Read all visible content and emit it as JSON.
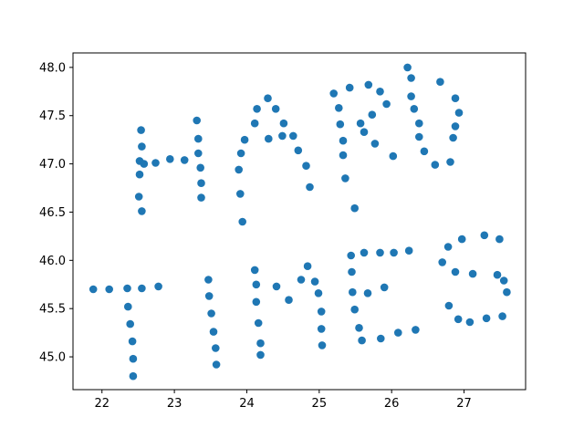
{
  "chart_data": {
    "type": "scatter",
    "title": "",
    "xlabel": "",
    "ylabel": "",
    "xlim": [
      21.6,
      27.85
    ],
    "ylim": [
      44.66,
      48.15
    ],
    "xticks": [
      22,
      23,
      24,
      25,
      26,
      27
    ],
    "yticks": [
      45.0,
      45.5,
      46.0,
      46.5,
      47.0,
      47.5,
      48.0
    ],
    "xtick_labels": [
      "22",
      "23",
      "24",
      "25",
      "26",
      "27"
    ],
    "ytick_labels": [
      "45.0",
      "45.5",
      "46.0",
      "46.5",
      "47.0",
      "47.5",
      "48.0"
    ],
    "grid": false,
    "color": "#1f77b4",
    "series": [
      {
        "x": [
          22.54,
          22.55,
          22.52,
          22.52,
          22.51,
          22.55,
          22.58,
          22.74,
          22.94,
          23.14,
          23.31,
          23.33,
          23.33,
          23.36,
          23.37,
          23.37,
          23.94,
          23.91,
          23.89,
          23.92,
          23.97,
          24.11,
          24.14,
          24.29,
          24.4,
          24.49,
          24.64,
          24.71,
          24.82,
          24.87,
          24.3,
          24.51,
          25.2,
          25.27,
          25.29,
          25.33,
          25.33,
          25.36,
          25.42,
          25.49,
          25.57,
          25.62,
          25.68,
          25.73,
          25.77,
          25.84,
          25.93,
          26.02,
          26.22,
          26.27,
          26.27,
          26.31,
          26.38,
          26.38,
          26.45,
          26.6,
          26.67,
          26.81,
          26.88,
          26.93,
          26.88,
          26.85,
          21.88,
          22.1,
          22.35,
          22.55,
          22.78,
          22.36,
          22.39,
          22.42,
          22.43,
          22.43,
          23.47,
          23.48,
          23.51,
          23.54,
          23.57,
          23.58,
          24.11,
          24.13,
          24.13,
          24.16,
          24.19,
          24.19,
          24.41,
          24.58,
          24.75,
          24.84,
          24.94,
          24.99,
          25.03,
          25.03,
          25.04,
          25.44,
          25.45,
          25.46,
          25.49,
          25.55,
          25.59,
          25.62,
          25.67,
          25.84,
          25.85,
          25.9,
          26.03,
          26.09,
          26.24,
          26.33,
          26.7,
          26.79,
          26.78,
          26.88,
          26.92,
          26.97,
          27.08,
          27.12,
          27.28,
          27.31,
          27.46,
          27.49,
          27.53,
          27.55,
          27.59
        ],
        "y": [
          47.35,
          47.18,
          47.03,
          46.89,
          46.66,
          46.51,
          47.0,
          47.01,
          47.05,
          47.04,
          47.45,
          47.26,
          47.11,
          46.96,
          46.8,
          46.65,
          46.4,
          46.69,
          46.94,
          47.11,
          47.25,
          47.42,
          47.57,
          47.68,
          47.57,
          47.29,
          47.29,
          47.14,
          46.98,
          46.76,
          47.26,
          47.42,
          47.73,
          47.58,
          47.41,
          47.24,
          47.09,
          46.85,
          47.79,
          46.54,
          47.42,
          47.33,
          47.82,
          47.51,
          47.21,
          47.75,
          47.62,
          47.08,
          48.0,
          47.89,
          47.7,
          47.57,
          47.42,
          47.28,
          47.13,
          46.99,
          47.85,
          47.02,
          47.68,
          47.53,
          47.39,
          47.27,
          45.7,
          45.7,
          45.71,
          45.71,
          45.73,
          45.52,
          45.34,
          45.16,
          44.98,
          44.8,
          45.8,
          45.63,
          45.45,
          45.26,
          45.09,
          44.92,
          45.9,
          45.57,
          45.75,
          45.35,
          45.14,
          45.02,
          45.73,
          45.59,
          45.8,
          45.94,
          45.78,
          45.66,
          45.47,
          45.29,
          45.12,
          46.05,
          45.88,
          45.67,
          45.49,
          45.3,
          45.17,
          46.08,
          45.66,
          46.08,
          45.19,
          45.72,
          46.08,
          45.25,
          46.1,
          45.28,
          45.98,
          45.53,
          46.14,
          45.88,
          45.39,
          46.22,
          45.36,
          45.86,
          46.26,
          45.4,
          45.85,
          46.22,
          45.42,
          45.79,
          45.67
        ]
      }
    ]
  }
}
